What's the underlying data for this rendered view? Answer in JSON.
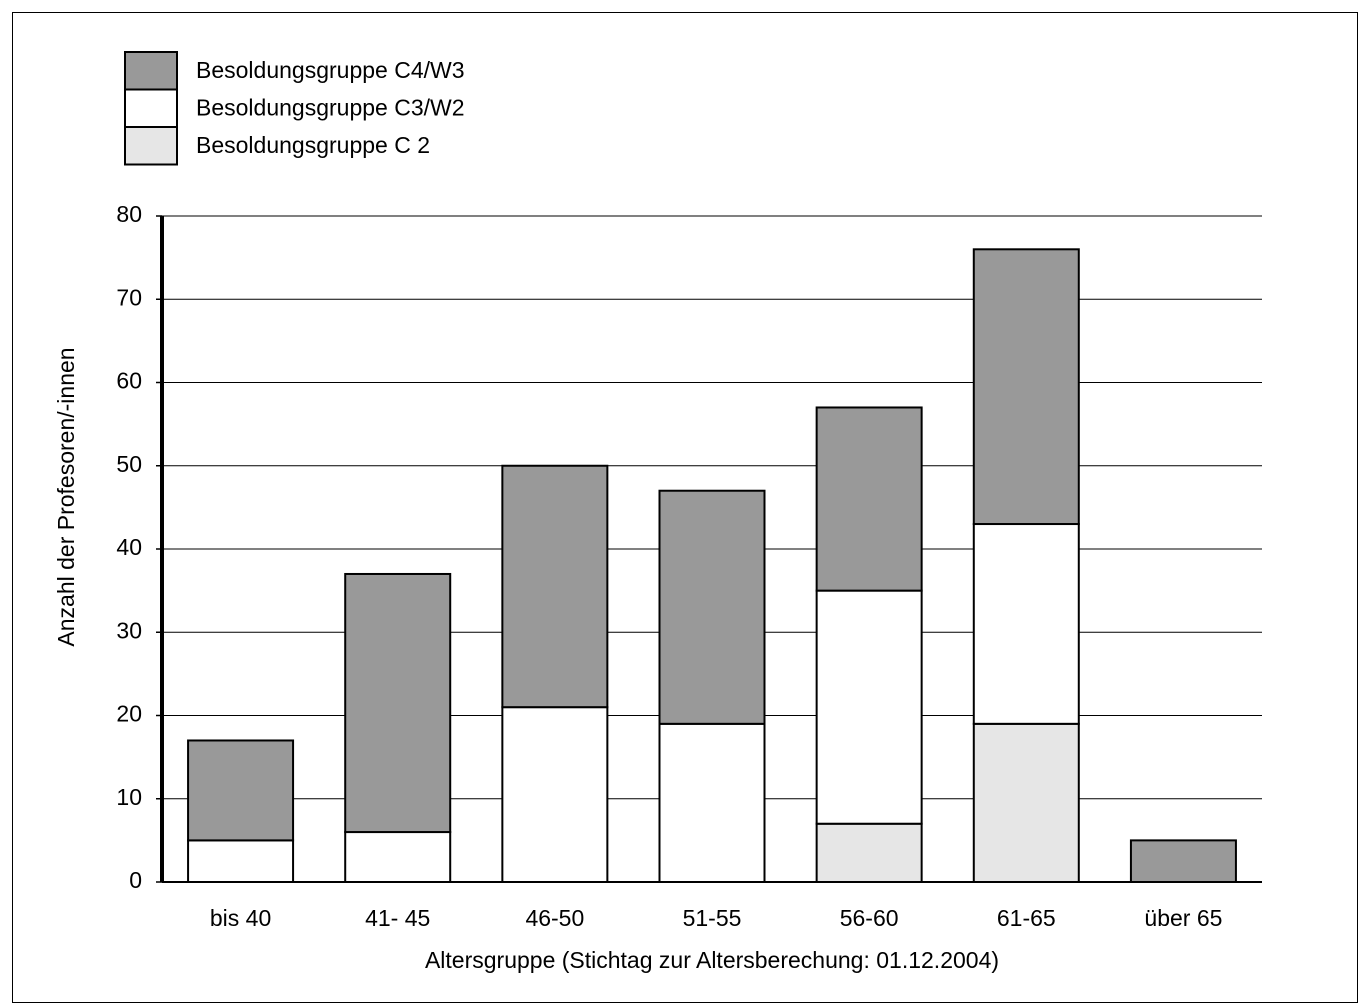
{
  "chart_data": {
    "type": "stacked-bar",
    "y_label": "Anzahl der Profesoren/-innen",
    "x_label": "Altersgruppe (Stichtag zur Altersberechung: 01.12.2004)",
    "categories": [
      "bis 40",
      "41- 45",
      "46-50",
      "51-55",
      "56-60",
      "61-65",
      "über 65"
    ],
    "series": [
      {
        "name": "Besoldungsgruppe C4/W3",
        "color": "#999999",
        "values": [
          12,
          31,
          29,
          28,
          22,
          33,
          5
        ]
      },
      {
        "name": "Besoldungsgruppe C3/W2",
        "color": "#ffffff",
        "values": [
          5,
          6,
          21,
          19,
          28,
          24,
          0
        ]
      },
      {
        "name": "Besoldungsgruppe C 2",
        "color": "#e6e6e6",
        "values": [
          0,
          0,
          0,
          0,
          7,
          19,
          0
        ]
      }
    ],
    "ylim": [
      0,
      80
    ],
    "yticks": [
      0,
      10,
      20,
      30,
      40,
      50,
      60,
      70,
      80
    ],
    "grid": true
  }
}
